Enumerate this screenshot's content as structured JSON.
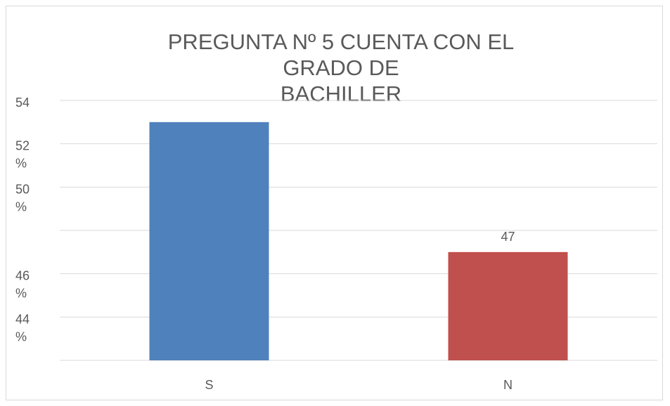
{
  "chart_data": {
    "type": "bar",
    "title": [
      "PREGUNTA Nº 5 CUENTA CON EL",
      "GRADO DE",
      "BACHILLER"
    ],
    "categories": [
      "S",
      "N"
    ],
    "values": [
      53,
      47
    ],
    "value_labels": [
      null,
      "47"
    ],
    "colors": [
      "#4f81bd",
      "#c0504d"
    ],
    "ylim": [
      42,
      54
    ],
    "yticks": [
      {
        "value": 44,
        "label": "44 %"
      },
      {
        "value": 46,
        "label": "46 %"
      },
      {
        "value": 48,
        "label": null
      },
      {
        "value": 50,
        "label": "50 %"
      },
      {
        "value": 52,
        "label": "52 %"
      },
      54
    ],
    "grid": true
  }
}
